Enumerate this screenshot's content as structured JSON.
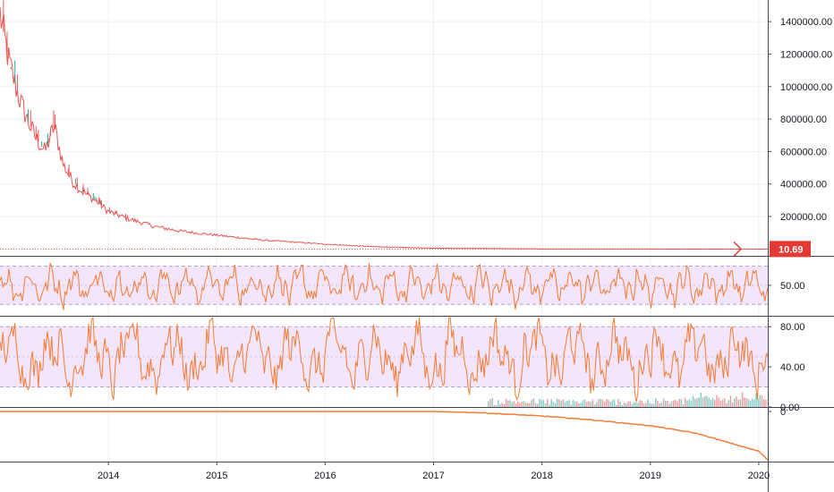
{
  "colors": {
    "background": "#ffffff",
    "grid": "#eef0f3",
    "divider": "#434651",
    "price": "#ef5350",
    "price_up": "#26a69a",
    "oscillator": "#f57c33",
    "band_fill": "#f3e5fc",
    "band_border": "#b39ddb",
    "volume_up": "#80cbc4",
    "volume_down": "#ef9a9a",
    "tag": "#e53935"
  },
  "chart_data": [
    {
      "type": "line",
      "pane": "price",
      "x_axis_labels": [
        "2014",
        "2015",
        "2016",
        "2017",
        "2018",
        "2019",
        "2020"
      ],
      "xlim": [
        "2013-01",
        "2020-02"
      ],
      "y_tick_labels": [
        "1400000.00",
        "1200000.00",
        "1000000.00",
        "800000.00",
        "600000.00",
        "400000.00",
        "200000.00"
      ],
      "ylim": [
        -20000,
        1500000
      ],
      "last_value_label": "10.69",
      "series": [
        {
          "x": [
            "2013-01",
            "2013-02",
            "2013-03",
            "2013-04",
            "2013-05",
            "2013-06",
            "2013-07",
            "2013-08",
            "2013-09",
            "2013-10",
            "2013-11",
            "2013-12",
            "2014-01",
            "2014-03",
            "2014-06",
            "2014-09",
            "2015-01",
            "2015-06",
            "2016-01",
            "2016-06",
            "2017-01",
            "2018-01",
            "2019-01",
            "2020-02"
          ],
          "values": [
            1450000,
            1150000,
            950000,
            800000,
            680000,
            600000,
            760000,
            520000,
            420000,
            360000,
            320000,
            280000,
            230000,
            190000,
            140000,
            110000,
            85000,
            55000,
            30000,
            15000,
            5000,
            1000,
            100,
            10.69
          ]
        }
      ]
    },
    {
      "type": "line",
      "pane": "oscillator-1",
      "y_tick_labels": [
        "50.00"
      ],
      "ylim": [
        18,
        80
      ],
      "band": [
        30,
        70
      ],
      "series": [
        {
          "x_range": [
            "2013-01",
            "2020-02"
          ],
          "mean": 50,
          "amplitude": 22
        }
      ]
    },
    {
      "type": "line",
      "pane": "oscillator-2",
      "y_tick_labels": [
        "80.00",
        "40.00",
        "0.00"
      ],
      "ylim": [
        0,
        90
      ],
      "band": [
        20,
        80
      ],
      "series": [
        {
          "x_range": [
            "2013-01",
            "2020-02"
          ],
          "mean": 50,
          "amplitude": 35
        }
      ]
    },
    {
      "type": "line",
      "pane": "cumulative",
      "y_tick_labels": [
        "0"
      ],
      "series": [
        {
          "x": [
            "2013-01",
            "2017-01",
            "2017-06",
            "2018-01",
            "2018-06",
            "2019-01",
            "2019-06",
            "2020-01",
            "2020-02"
          ],
          "values": [
            0,
            0,
            -2,
            -8,
            -14,
            -25,
            -38,
            -70,
            -85
          ]
        }
      ]
    }
  ]
}
